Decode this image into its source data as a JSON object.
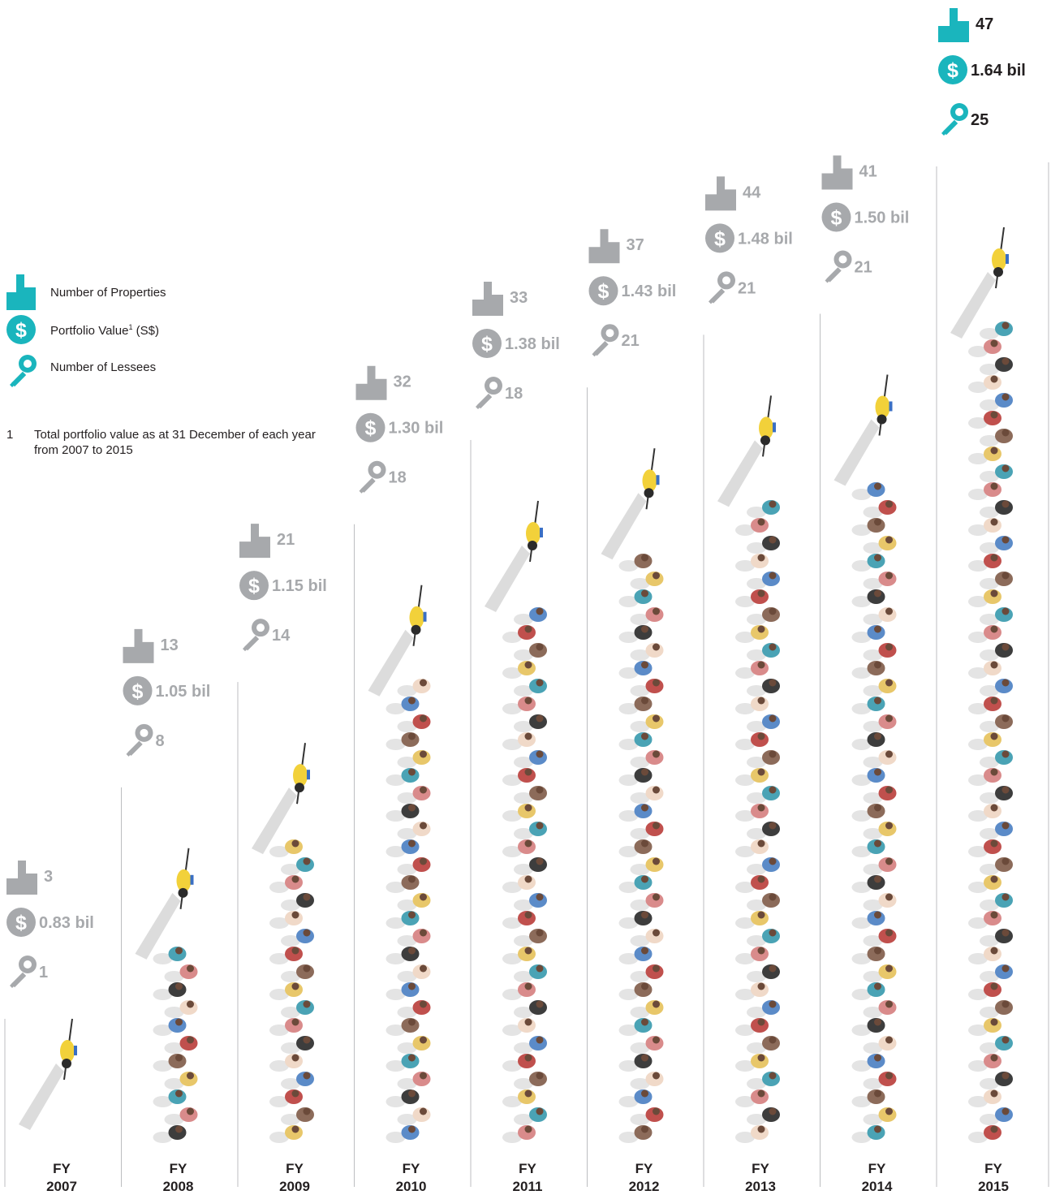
{
  "legend": {
    "properties_label": "Number of Properties",
    "value_label": "Portfolio Value",
    "value_sup": "1",
    "value_suffix": " (S$)",
    "lessees_label": "Number of Lessees"
  },
  "footnote": {
    "number": "1",
    "text": "Total portfolio value as at 31 December of each year from 2007 to 2015"
  },
  "colors": {
    "highlight": "#1ab5bd",
    "muted": "#a7a9ac",
    "text": "#231f20",
    "divider": "#bcbec0"
  },
  "icons": {
    "properties": "building-icon",
    "value": "dollar-icon",
    "lessees": "keys-icon",
    "marker": "cyclist-icon"
  },
  "chart_data": {
    "type": "bar",
    "categories": [
      "FY\n2007",
      "FY\n2008",
      "FY\n2009",
      "FY\n2010",
      "FY\n2011",
      "FY\n2012",
      "FY\n2013",
      "FY\n2014",
      "FY\n2015"
    ],
    "years": [
      "2007",
      "2008",
      "2009",
      "2010",
      "2011",
      "2012",
      "2013",
      "2014",
      "2015"
    ],
    "year_prefix": "FY",
    "series": [
      {
        "name": "Number of Properties",
        "values": [
          3,
          13,
          21,
          32,
          33,
          37,
          44,
          41,
          47
        ]
      },
      {
        "name": "Portfolio Value",
        "values": [
          0.83,
          1.05,
          1.15,
          1.3,
          1.38,
          1.43,
          1.48,
          1.5,
          1.64
        ],
        "labels": [
          "0.83 bil",
          "1.05 bil",
          "1.15 bil",
          "1.30 bil",
          "1.38 bil",
          "1.43 bil",
          "1.48 bil",
          "1.50 bil",
          "1.64 bil"
        ]
      },
      {
        "name": "Number of Lessees",
        "values": [
          1,
          8,
          14,
          18,
          18,
          21,
          21,
          21,
          25
        ]
      }
    ],
    "highlight_index": 8
  }
}
